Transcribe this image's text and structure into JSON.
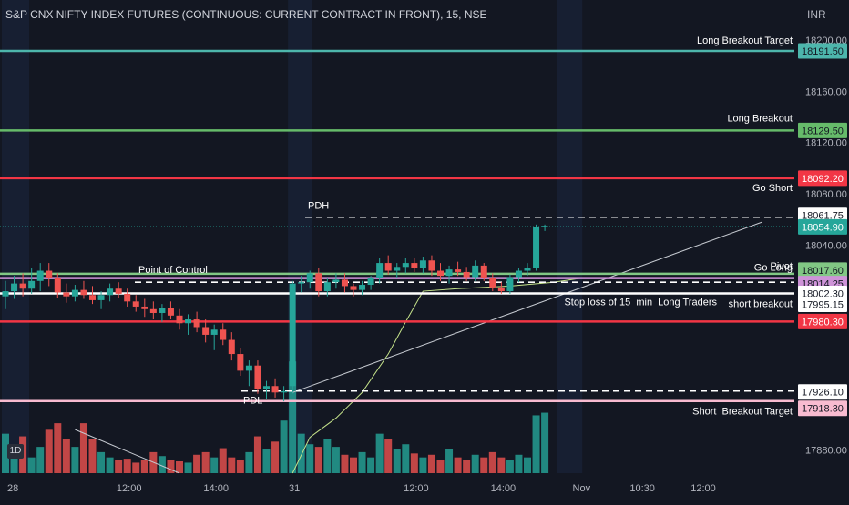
{
  "header": {
    "title": "S&P CNX NIFTY INDEX FUTURES (CONTINUOUS: CURRENT CONTRACT IN FRONT), 15, NSE",
    "currency": "INR",
    "timeframe_badge": "1D"
  },
  "colors": {
    "background": "#131722",
    "up": "#26a69a",
    "down": "#ef5350",
    "session_band": "#1c2640"
  },
  "chart_data": {
    "type": "candlestick",
    "y_axis": {
      "min": 17862,
      "max": 18210,
      "ticks": [
        18200,
        18160,
        18120,
        18080,
        18040,
        17880
      ]
    },
    "x_axis": {
      "labels": [
        {
          "text": "28",
          "slot": 0
        },
        {
          "text": "12:00",
          "slot": 14
        },
        {
          "text": "14:00",
          "slot": 24
        },
        {
          "text": "31",
          "slot": 33
        },
        {
          "text": "12:00",
          "slot": 47
        },
        {
          "text": "14:00",
          "slot": 57
        },
        {
          "text": "Nov",
          "slot": 66
        },
        {
          "text": "10:30",
          "slot": 73
        },
        {
          "text": "12:00",
          "slot": 80
        }
      ]
    },
    "candles": [
      {
        "o": 18000,
        "h": 18012,
        "l": 17990,
        "c": 18004
      },
      {
        "o": 18004,
        "h": 18016,
        "l": 17998,
        "c": 18010
      },
      {
        "o": 18010,
        "h": 18018,
        "l": 18000,
        "c": 18006
      },
      {
        "o": 18006,
        "h": 18022,
        "l": 18002,
        "c": 18012
      },
      {
        "o": 18012,
        "h": 18026,
        "l": 18004,
        "c": 18020
      },
      {
        "o": 18020,
        "h": 18026,
        "l": 18008,
        "c": 18014
      },
      {
        "o": 18014,
        "h": 18018,
        "l": 17999,
        "c": 18003
      },
      {
        "o": 18003,
        "h": 18010,
        "l": 17995,
        "c": 18000
      },
      {
        "o": 18000,
        "h": 18009,
        "l": 17996,
        "c": 18005
      },
      {
        "o": 18005,
        "h": 18012,
        "l": 17998,
        "c": 18001
      },
      {
        "o": 18001,
        "h": 18008,
        "l": 17994,
        "c": 17997
      },
      {
        "o": 17997,
        "h": 18004,
        "l": 17990,
        "c": 18001
      },
      {
        "o": 18001,
        "h": 18010,
        "l": 17996,
        "c": 18006
      },
      {
        "o": 18006,
        "h": 18011,
        "l": 17999,
        "c": 18002
      },
      {
        "o": 18002,
        "h": 18006,
        "l": 17992,
        "c": 17996
      },
      {
        "o": 17996,
        "h": 18001,
        "l": 17988,
        "c": 17992
      },
      {
        "o": 17992,
        "h": 17998,
        "l": 17984,
        "c": 17990
      },
      {
        "o": 17990,
        "h": 17996,
        "l": 17982,
        "c": 17987
      },
      {
        "o": 17987,
        "h": 17994,
        "l": 17980,
        "c": 17991
      },
      {
        "o": 17991,
        "h": 17996,
        "l": 17982,
        "c": 17985
      },
      {
        "o": 17985,
        "h": 17990,
        "l": 17974,
        "c": 17979
      },
      {
        "o": 17979,
        "h": 17986,
        "l": 17970,
        "c": 17982
      },
      {
        "o": 17982,
        "h": 17988,
        "l": 17972,
        "c": 17976
      },
      {
        "o": 17976,
        "h": 17982,
        "l": 17964,
        "c": 17970
      },
      {
        "o": 17970,
        "h": 17978,
        "l": 17958,
        "c": 17974
      },
      {
        "o": 17974,
        "h": 17979,
        "l": 17962,
        "c": 17966
      },
      {
        "o": 17966,
        "h": 17972,
        "l": 17950,
        "c": 17955
      },
      {
        "o": 17955,
        "h": 17960,
        "l": 17938,
        "c": 17942
      },
      {
        "o": 17942,
        "h": 17950,
        "l": 17930,
        "c": 17946
      },
      {
        "o": 17946,
        "h": 17950,
        "l": 17924,
        "c": 17928
      },
      {
        "o": 17928,
        "h": 17934,
        "l": 17920,
        "c": 17930
      },
      {
        "o": 17930,
        "h": 17936,
        "l": 17921,
        "c": 17925
      },
      {
        "o": 17925,
        "h": 17930,
        "l": 17918,
        "c": 17926
      },
      {
        "o": 17930,
        "h": 18012,
        "l": 17924,
        "c": 18010
      },
      {
        "o": 18010,
        "h": 18016,
        "l": 18003,
        "c": 18011
      },
      {
        "o": 18011,
        "h": 18020,
        "l": 18006,
        "c": 18018
      },
      {
        "o": 18018,
        "h": 18022,
        "l": 18000,
        "c": 18004
      },
      {
        "o": 18004,
        "h": 18014,
        "l": 18000,
        "c": 18011
      },
      {
        "o": 18011,
        "h": 18018,
        "l": 18006,
        "c": 18013
      },
      {
        "o": 18013,
        "h": 18018,
        "l": 18003,
        "c": 18008
      },
      {
        "o": 18008,
        "h": 18010,
        "l": 18000,
        "c": 18005
      },
      {
        "o": 18005,
        "h": 18012,
        "l": 18001,
        "c": 18009
      },
      {
        "o": 18009,
        "h": 18016,
        "l": 18005,
        "c": 18014
      },
      {
        "o": 18014,
        "h": 18030,
        "l": 18010,
        "c": 18026
      },
      {
        "o": 18026,
        "h": 18032,
        "l": 18017,
        "c": 18020
      },
      {
        "o": 18020,
        "h": 18026,
        "l": 18014,
        "c": 18023
      },
      {
        "o": 18023,
        "h": 18030,
        "l": 18018,
        "c": 18026
      },
      {
        "o": 18026,
        "h": 18030,
        "l": 18019,
        "c": 18022
      },
      {
        "o": 18022,
        "h": 18031,
        "l": 18018,
        "c": 18028
      },
      {
        "o": 18028,
        "h": 18032,
        "l": 18016,
        "c": 18020
      },
      {
        "o": 18020,
        "h": 18026,
        "l": 18012,
        "c": 18016
      },
      {
        "o": 18016,
        "h": 18024,
        "l": 18010,
        "c": 18021
      },
      {
        "o": 18021,
        "h": 18027,
        "l": 18016,
        "c": 18019
      },
      {
        "o": 18019,
        "h": 18023,
        "l": 18012,
        "c": 18015
      },
      {
        "o": 18015,
        "h": 18028,
        "l": 18012,
        "c": 18024
      },
      {
        "o": 18024,
        "h": 18026,
        "l": 18012,
        "c": 18014
      },
      {
        "o": 18014,
        "h": 18018,
        "l": 18004,
        "c": 18007
      },
      {
        "o": 18007,
        "h": 18011,
        "l": 18002,
        "c": 18004
      },
      {
        "o": 18004,
        "h": 18017,
        "l": 18002,
        "c": 18015
      },
      {
        "o": 18015,
        "h": 18022,
        "l": 18011,
        "c": 18020
      },
      {
        "o": 18020,
        "h": 18026,
        "l": 18016,
        "c": 18022
      },
      {
        "o": 18022,
        "h": 18056,
        "l": 18020,
        "c": 18054
      },
      {
        "o": 18054,
        "h": 18056,
        "l": 18051,
        "c": 18055
      }
    ],
    "volumes": [
      30,
      18,
      28,
      12,
      20,
      33,
      38,
      26,
      20,
      38,
      26,
      16,
      12,
      10,
      11,
      8,
      10,
      16,
      13,
      10,
      9,
      8,
      14,
      16,
      12,
      19,
      12,
      10,
      16,
      28,
      18,
      24,
      40,
      85,
      30,
      22,
      20,
      26,
      20,
      14,
      12,
      16,
      12,
      30,
      26,
      18,
      22,
      15,
      12,
      14,
      10,
      18,
      12,
      10,
      14,
      12,
      16,
      12,
      10,
      14,
      12,
      44,
      46
    ],
    "level_lines": [
      {
        "label": "Long Breakout Target",
        "price_label": "18191.50",
        "value": 18191.5,
        "color": "#4db6ac",
        "style": "solid"
      },
      {
        "label": "Long Breakout",
        "price_label": "18129.50",
        "value": 18129.5,
        "color": "#66bb6a",
        "style": "solid"
      },
      {
        "label": "Go Short",
        "price_label": "18092.20",
        "value": 18092.2,
        "color": "#f23645",
        "style": "solid"
      },
      {
        "label": "PDH",
        "price_label": "18061.75",
        "value": 18061.75,
        "color": "#ffffff",
        "style": "dashed"
      },
      {
        "label": "",
        "price_label": "18054.90",
        "value": 18054.9,
        "color": "#26a69a",
        "style": "last"
      },
      {
        "label": "Pivot",
        "price_label": "18017.60",
        "value": 18017.6,
        "color": "#81c784",
        "style": "solid"
      },
      {
        "label": "Point of Control",
        "price_label": "",
        "value": 18011,
        "color": "#ffffff",
        "style": "dashed"
      },
      {
        "label": "Go Long",
        "price_label": "18014.25",
        "value": 18014.25,
        "color": "#ce93d8",
        "style": "solid"
      },
      {
        "label": "Stop loss of 15  min  Long Traders",
        "price_label": "18002.30",
        "value": 18002.3,
        "color": "#ffffff",
        "style": "solid"
      },
      {
        "label": "short breakout",
        "price_label": "17995.15",
        "value": 17995.15,
        "color": "#ffffff",
        "style": "label"
      },
      {
        "label": "",
        "price_label": "17980.30",
        "value": 17980.3,
        "color": "#f23645",
        "style": "solid"
      },
      {
        "label": "PDL",
        "price_label": "17926.10",
        "value": 17926.1,
        "color": "#ffffff",
        "style": "dashed"
      },
      {
        "label": "Short  Breakout Target",
        "price_label": "17918.30",
        "value": 17918.3,
        "color": "#f8bbd0",
        "style": "solid"
      }
    ],
    "trendlines": [
      {
        "from": {
          "slot": 33,
          "value": 17925
        },
        "to": {
          "slot": 87,
          "value": 18058
        },
        "color": "#c5c9d0"
      },
      {
        "from": {
          "slot": 8,
          "value": 17896
        },
        "to": {
          "slot": 20,
          "value": 17862
        },
        "color": "#c5c9d0"
      }
    ],
    "vwap": [
      {
        "slot": 33,
        "value": 17862
      },
      {
        "slot": 35,
        "value": 17890
      },
      {
        "slot": 38,
        "value": 17905
      },
      {
        "slot": 41,
        "value": 17925
      },
      {
        "slot": 44,
        "value": 17955
      },
      {
        "slot": 46,
        "value": 17980
      },
      {
        "slot": 48,
        "value": 18004
      },
      {
        "slot": 52,
        "value": 18006
      },
      {
        "slot": 58,
        "value": 18008
      },
      {
        "slot": 63,
        "value": 18011
      },
      {
        "slot": 66,
        "value": 18014
      }
    ]
  }
}
